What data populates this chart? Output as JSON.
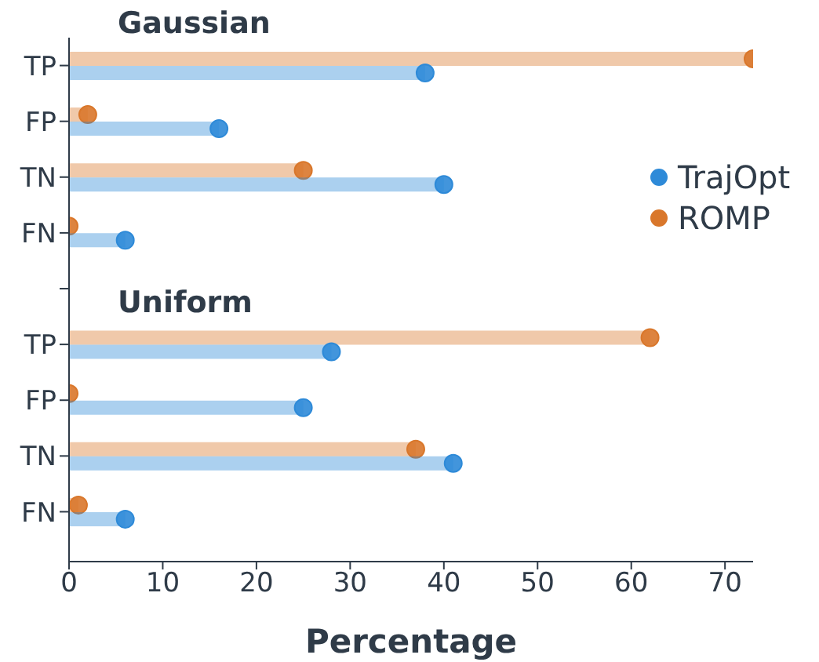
{
  "chart_data": {
    "type": "lollipop",
    "orientation": "horizontal",
    "xlabel": "Percentage",
    "annotations": [
      "Gaussian",
      "Uniform"
    ],
    "categories": [
      "TP",
      "FP",
      "TN",
      "FN",
      null,
      "TP",
      "FP",
      "TN",
      "FN"
    ],
    "series": [
      {
        "name": "TrajOpt",
        "color": "#2e8ad8",
        "values": [
          38,
          16,
          40,
          6,
          null,
          28,
          25,
          41,
          6
        ]
      },
      {
        "name": "ROMP",
        "color": "#d9772b",
        "values": [
          73,
          2,
          25,
          0,
          null,
          62,
          0,
          37,
          1
        ]
      }
    ],
    "xlim": [
      0,
      73
    ],
    "xticks": [
      0,
      10,
      20,
      30,
      40,
      50,
      60,
      70
    ],
    "legend": "right",
    "grid": false
  }
}
